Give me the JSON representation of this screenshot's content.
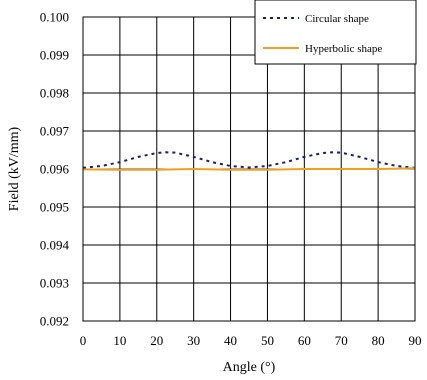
{
  "chart_data": {
    "type": "line",
    "xlabel": "Angle (°)",
    "ylabel": "Field (kV/mm)",
    "xlim": [
      0,
      90
    ],
    "ylim": [
      0.092,
      0.1
    ],
    "x_ticks": [
      "0",
      "10",
      "20",
      "30",
      "40",
      "50",
      "60",
      "70",
      "80",
      "90"
    ],
    "y_ticks": [
      "0.092",
      "0.093",
      "0.094",
      "0.095",
      "0.096",
      "0.097",
      "0.098",
      "0.099",
      "0.100"
    ],
    "grid": true,
    "legend_position": "top-right",
    "series": [
      {
        "name": "Circular shape",
        "color": "#1a1a80",
        "style": "dotted",
        "x": [
          0,
          5,
          10,
          15,
          20,
          22.5,
          25,
          30,
          35,
          40,
          45,
          50,
          55,
          60,
          65,
          67.5,
          70,
          75,
          80,
          85,
          90
        ],
        "y": [
          0.09603,
          0.09608,
          0.09618,
          0.09632,
          0.09642,
          0.09644,
          0.09643,
          0.09632,
          0.09618,
          0.09608,
          0.09604,
          0.09608,
          0.09618,
          0.09632,
          0.09642,
          0.09644,
          0.09643,
          0.09632,
          0.09618,
          0.09608,
          0.09603
        ]
      },
      {
        "name": "Hyperbolic shape",
        "color": "#f0a020",
        "style": "solid",
        "x": [
          0,
          10,
          20,
          30,
          40,
          50,
          60,
          70,
          80,
          90
        ],
        "y": [
          0.09599,
          0.09598,
          0.09598,
          0.096,
          0.09598,
          0.09598,
          0.096,
          0.096,
          0.096,
          0.09602
        ]
      }
    ]
  }
}
